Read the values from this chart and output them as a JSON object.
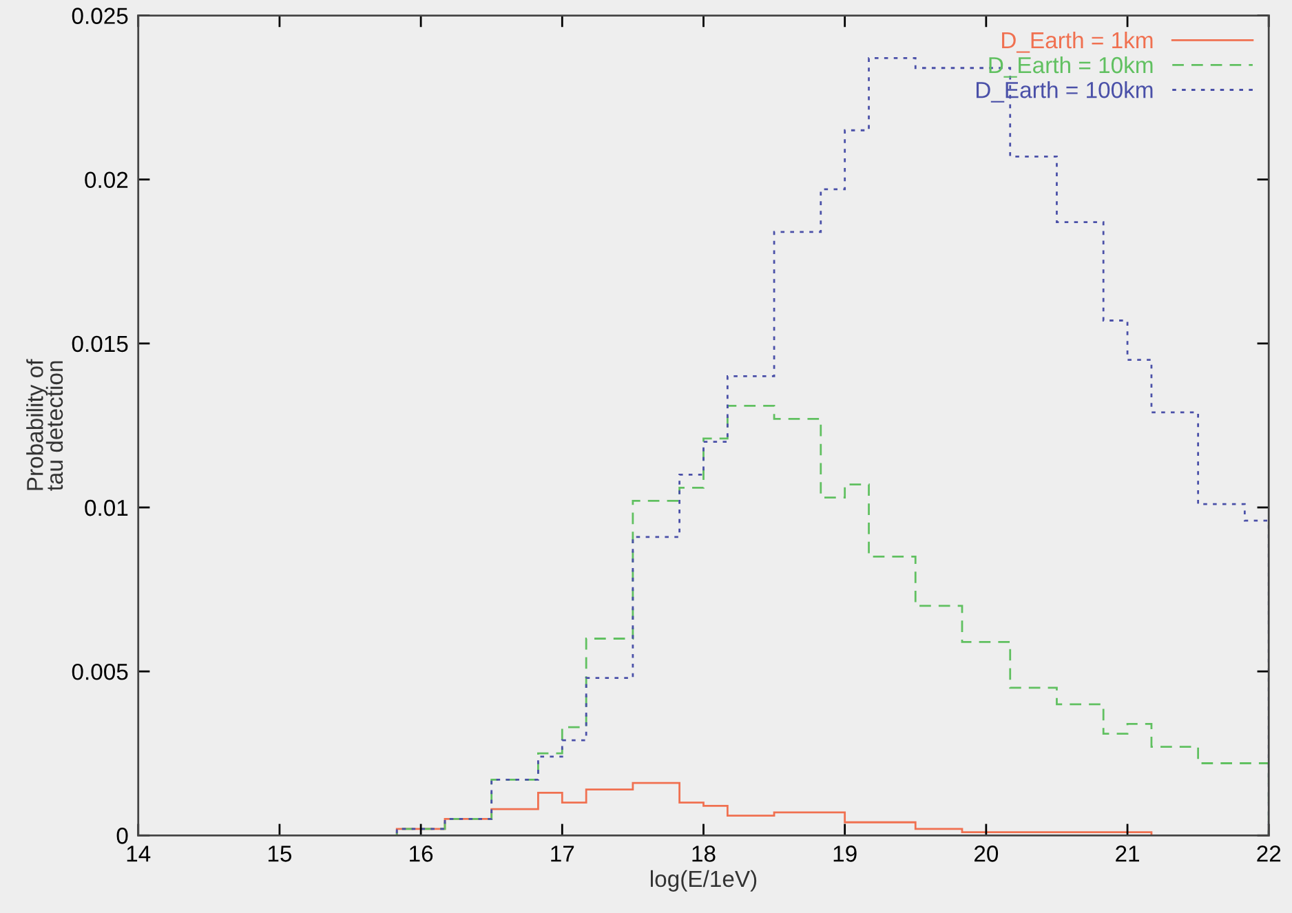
{
  "chart_data": {
    "type": "histogram",
    "xlabel": "log(E/1eV)",
    "ylabel": "Probability of\ntau detection",
    "bins": [
      14.83,
      15.17,
      15.5,
      15.83,
      16.17,
      16.5,
      16.83,
      17.0,
      17.17,
      17.5,
      17.83,
      18.0,
      18.17,
      18.5,
      18.83,
      19.0,
      19.17,
      19.5,
      19.83,
      20.17,
      20.5,
      20.83,
      21.0,
      21.17,
      21.5,
      21.83,
      22.0
    ],
    "series": [
      {
        "name": "D_Earth = 1km",
        "color": "#f07050",
        "line_style": "solid",
        "values": [
          0,
          0,
          0,
          0.0002,
          0.0005,
          0.0008,
          0.0013,
          0.001,
          0.0014,
          0.0016,
          0.001,
          0.0009,
          0.0006,
          0.0007,
          0.0007,
          0.0004,
          0.0004,
          0.0002,
          0.0001,
          0.0001,
          0.0001,
          0.0001,
          0.0001,
          0,
          0,
          0
        ]
      },
      {
        "name": "D_Earth = 10km",
        "color": "#60c060",
        "line_style": "dashed",
        "values": [
          0,
          0,
          0,
          0.0002,
          0.0005,
          0.0017,
          0.0025,
          0.0033,
          0.006,
          0.0102,
          0.0106,
          0.0121,
          0.0131,
          0.0127,
          0.0103,
          0.0107,
          0.0085,
          0.007,
          0.0059,
          0.0045,
          0.004,
          0.0031,
          0.0034,
          0.0027,
          0.0022,
          0.0022
        ]
      },
      {
        "name": "D_Earth = 100km",
        "color": "#4a50a8",
        "line_style": "dotted",
        "values": [
          0,
          0,
          0,
          0.0002,
          0.0005,
          0.0017,
          0.0024,
          0.0029,
          0.0048,
          0.0091,
          0.011,
          0.012,
          0.014,
          0.0184,
          0.0197,
          0.0215,
          0.0237,
          0.0234,
          0.0234,
          0.0207,
          0.0187,
          0.0157,
          0.0145,
          0.0129,
          0.0101,
          0.0096
        ]
      }
    ],
    "xlim": [
      14,
      22
    ],
    "xticks": [
      14,
      15,
      16,
      17,
      18,
      19,
      20,
      21,
      22
    ],
    "ylim": [
      0,
      0.025
    ],
    "yticks": [
      0,
      0.005,
      0.01,
      0.015,
      0.02,
      0.025
    ],
    "legend": "top right",
    "grid": false
  }
}
